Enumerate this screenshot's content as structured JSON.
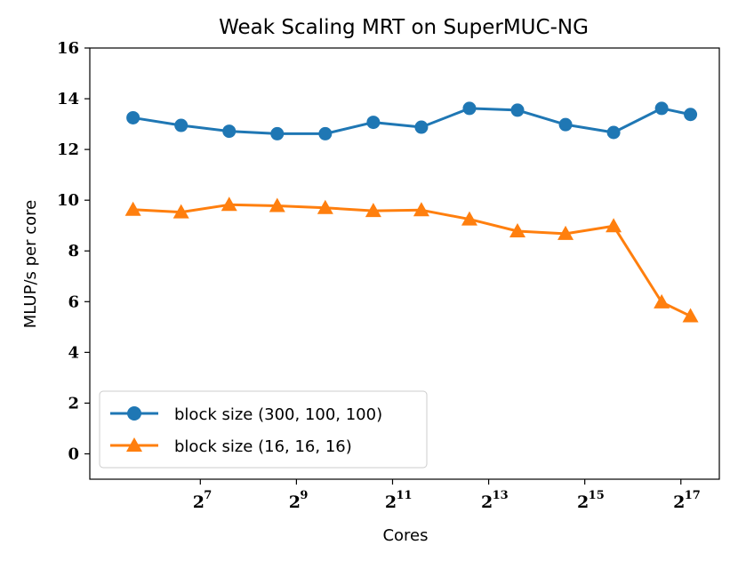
{
  "chart_data": {
    "type": "line",
    "title": "Weak Scaling MRT on SuperMUC-NG",
    "xlabel": "Cores",
    "ylabel": "MLUP/s per core",
    "xscale": "log2",
    "x": [
      5.6,
      6.6,
      7.6,
      8.6,
      9.6,
      10.6,
      11.6,
      12.6,
      13.6,
      14.6,
      15.6,
      16.6,
      17.2
    ],
    "xlim": [
      4.7,
      17.8
    ],
    "ylim": [
      -1,
      16
    ],
    "xticks": [
      {
        "base": "2",
        "exp": "7",
        "value": 7
      },
      {
        "base": "2",
        "exp": "9",
        "value": 9
      },
      {
        "base": "2",
        "exp": "11",
        "value": 11
      },
      {
        "base": "2",
        "exp": "13",
        "value": 13
      },
      {
        "base": "2",
        "exp": "15",
        "value": 15
      },
      {
        "base": "2",
        "exp": "17",
        "value": 17
      }
    ],
    "yticks": [
      "0",
      "2",
      "4",
      "6",
      "8",
      "10",
      "12",
      "14",
      "16"
    ],
    "legend_position": "bottom-left",
    "series": [
      {
        "name": "block size (300, 100, 100)",
        "color": "#1f77b4",
        "marker": "circle",
        "values": [
          13.25,
          12.95,
          12.72,
          12.62,
          12.62,
          13.07,
          12.88,
          13.62,
          13.55,
          12.98,
          12.67,
          13.62,
          13.38
        ]
      },
      {
        "name": "block size (16, 16, 16)",
        "color": "#ff7f0e",
        "marker": "triangle",
        "values": [
          9.63,
          9.53,
          9.82,
          9.78,
          9.7,
          9.58,
          9.61,
          9.25,
          8.78,
          8.68,
          8.98,
          5.98,
          5.43
        ]
      }
    ]
  }
}
